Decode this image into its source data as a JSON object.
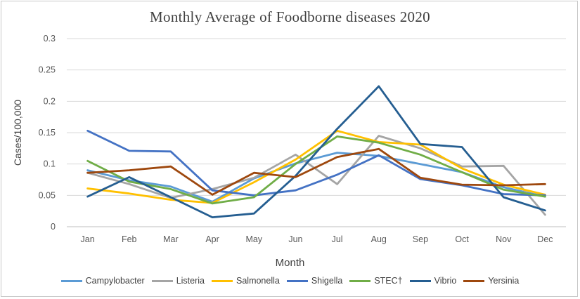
{
  "chart_data": {
    "type": "line",
    "title": "Monthly Average of Foodborne diseases 2020",
    "xlabel": "Month",
    "ylabel": "Cases/100,000",
    "ylim": [
      0,
      0.3
    ],
    "yticks": [
      0,
      0.05,
      0.1,
      0.15,
      0.2,
      0.25,
      0.3
    ],
    "ytick_labels": [
      "0",
      "0.05",
      "0.1",
      "0.15",
      "0.2",
      "0.25",
      "0.3"
    ],
    "grid": true,
    "legend_position": "bottom",
    "categories": [
      "Jan",
      "Feb",
      "Mar",
      "Apr",
      "May",
      "Jun",
      "Jul",
      "Aug",
      "Sep",
      "Oct",
      "Nov",
      "Dec"
    ],
    "series": [
      {
        "name": "Campylobacter",
        "color": "#5b9bd5",
        "values": [
          0.09,
          0.074,
          0.064,
          0.04,
          0.077,
          0.101,
          0.118,
          0.113,
          0.1,
          0.087,
          0.063,
          0.048
        ]
      },
      {
        "name": "Listeria",
        "color": "#a5a5a5",
        "values": [
          0.086,
          0.068,
          0.046,
          0.06,
          0.078,
          0.115,
          0.068,
          0.145,
          0.125,
          0.096,
          0.097,
          0.019
        ]
      },
      {
        "name": "Salmonella",
        "color": "#ffc000",
        "values": [
          0.061,
          0.053,
          0.043,
          0.038,
          0.071,
          0.107,
          0.153,
          0.135,
          0.131,
          0.093,
          0.067,
          0.051
        ]
      },
      {
        "name": "Shigella",
        "color": "#4472c4",
        "values": [
          0.153,
          0.121,
          0.12,
          0.058,
          0.05,
          0.058,
          0.083,
          0.114,
          0.076,
          0.066,
          0.052,
          0.05
        ]
      },
      {
        "name": "STEC†",
        "color": "#70ad47",
        "values": [
          0.105,
          0.072,
          0.06,
          0.037,
          0.047,
          0.1,
          0.144,
          0.134,
          0.115,
          0.087,
          0.059,
          0.048
        ]
      },
      {
        "name": "Vibrio",
        "color": "#255e91",
        "values": [
          0.048,
          0.079,
          0.047,
          0.015,
          0.021,
          0.081,
          0.156,
          0.224,
          0.132,
          0.127,
          0.047,
          0.026
        ]
      },
      {
        "name": "Yersinia",
        "color": "#9e480e",
        "values": [
          0.086,
          0.09,
          0.096,
          0.051,
          0.086,
          0.079,
          0.111,
          0.124,
          0.078,
          0.067,
          0.066,
          0.068
        ]
      }
    ]
  }
}
